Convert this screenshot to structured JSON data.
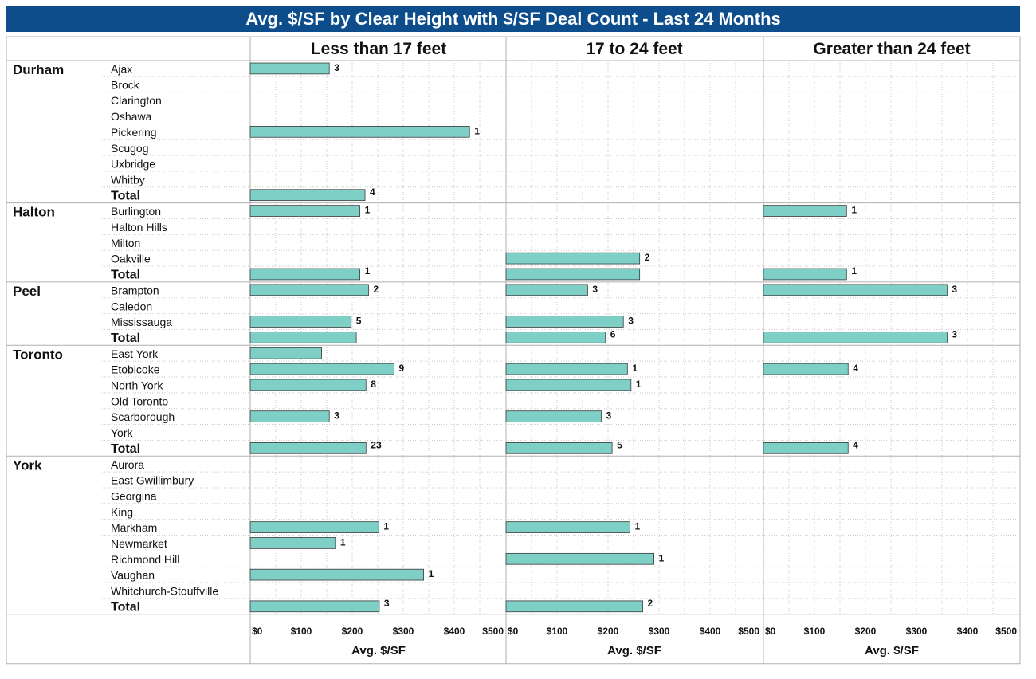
{
  "colors": {
    "title_bg": "#0d4d8c",
    "bar_fill": "#7ecfc6",
    "bar_stroke": "#3a3a3a",
    "grid": "#c8c8c8",
    "border": "#b0b0b0"
  },
  "chart_data": {
    "type": "bar",
    "title": "Avg. $/SF by Clear Height with $/SF Deal Count - Last 24 Months",
    "columns": [
      "Less than 17 feet",
      "17 to 24 feet",
      "Greater than 24 feet"
    ],
    "xlabel": "Avg. $/SF",
    "xlim": [
      0,
      500
    ],
    "x_ticks": [
      "$0",
      "$100",
      "$200",
      "$300",
      "$400",
      "$500"
    ],
    "grid": true,
    "groups": [
      {
        "region": "Durham",
        "rows": [
          {
            "label": "Ajax",
            "values": [
              155,
              null,
              null
            ],
            "counts": [
              "3",
              "",
              ""
            ]
          },
          {
            "label": "Brock",
            "values": [
              null,
              null,
              null
            ],
            "counts": [
              "",
              "",
              ""
            ]
          },
          {
            "label": "Clarington",
            "values": [
              null,
              null,
              null
            ],
            "counts": [
              "",
              "",
              ""
            ]
          },
          {
            "label": "Oshawa",
            "values": [
              null,
              null,
              null
            ],
            "counts": [
              "",
              "",
              ""
            ]
          },
          {
            "label": "Pickering",
            "values": [
              430,
              null,
              null
            ],
            "counts": [
              "1",
              "",
              ""
            ]
          },
          {
            "label": "Scugog",
            "values": [
              null,
              null,
              null
            ],
            "counts": [
              "",
              "",
              ""
            ]
          },
          {
            "label": "Uxbridge",
            "values": [
              null,
              null,
              null
            ],
            "counts": [
              "",
              "",
              ""
            ]
          },
          {
            "label": "Whitby",
            "values": [
              null,
              null,
              null
            ],
            "counts": [
              "",
              "",
              ""
            ]
          },
          {
            "label": "Total",
            "total": true,
            "values": [
              225,
              null,
              null
            ],
            "counts": [
              "4",
              "",
              ""
            ]
          }
        ]
      },
      {
        "region": "Halton",
        "rows": [
          {
            "label": "Burlington",
            "values": [
              215,
              null,
              163
            ],
            "counts": [
              "1",
              "",
              "1"
            ]
          },
          {
            "label": "Halton Hills",
            "values": [
              null,
              null,
              null
            ],
            "counts": [
              "",
              "",
              ""
            ]
          },
          {
            "label": "Milton",
            "values": [
              null,
              null,
              null
            ],
            "counts": [
              "",
              "",
              ""
            ]
          },
          {
            "label": "Oakville",
            "values": [
              null,
              262,
              null
            ],
            "counts": [
              "",
              "2",
              ""
            ]
          },
          {
            "label": "Total",
            "total": true,
            "values": [
              215,
              262,
              163
            ],
            "counts": [
              "1",
              "",
              "1"
            ]
          }
        ]
      },
      {
        "region": "Peel",
        "rows": [
          {
            "label": "Brampton",
            "values": [
              232,
              160,
              360
            ],
            "counts": [
              "2",
              "3",
              "3"
            ]
          },
          {
            "label": "Caledon",
            "values": [
              null,
              null,
              null
            ],
            "counts": [
              "",
              "",
              ""
            ]
          },
          {
            "label": "Mississauga",
            "values": [
              198,
              230,
              null
            ],
            "counts": [
              "5",
              "3",
              ""
            ]
          },
          {
            "label": "Total",
            "total": true,
            "values": [
              208,
              195,
              360
            ],
            "counts": [
              "",
              "6",
              "3"
            ]
          }
        ]
      },
      {
        "region": "Toronto",
        "rows": [
          {
            "label": "East York",
            "values": [
              140,
              null,
              null
            ],
            "counts": [
              "",
              "",
              ""
            ]
          },
          {
            "label": "Etobicoke",
            "values": [
              282,
              238,
              166
            ],
            "counts": [
              "9",
              "1",
              "4"
            ]
          },
          {
            "label": "North York",
            "values": [
              227,
              245,
              null
            ],
            "counts": [
              "8",
              "1",
              ""
            ]
          },
          {
            "label": "Old Toronto",
            "values": [
              null,
              null,
              null
            ],
            "counts": [
              "",
              "",
              ""
            ]
          },
          {
            "label": "Scarborough",
            "values": [
              155,
              187,
              null
            ],
            "counts": [
              "3",
              "3",
              ""
            ]
          },
          {
            "label": "York",
            "values": [
              null,
              null,
              null
            ],
            "counts": [
              "",
              "",
              ""
            ]
          },
          {
            "label": "Total",
            "total": true,
            "values": [
              227,
              208,
              166
            ],
            "counts": [
              "23",
              "5",
              "4"
            ]
          }
        ]
      },
      {
        "region": "York",
        "rows": [
          {
            "label": "Aurora",
            "values": [
              null,
              null,
              null
            ],
            "counts": [
              "",
              "",
              ""
            ]
          },
          {
            "label": "East Gwillimbury",
            "values": [
              null,
              null,
              null
            ],
            "counts": [
              "",
              "",
              ""
            ]
          },
          {
            "label": "Georgina",
            "values": [
              null,
              null,
              null
            ],
            "counts": [
              "",
              "",
              ""
            ]
          },
          {
            "label": "King",
            "values": [
              null,
              null,
              null
            ],
            "counts": [
              "",
              "",
              ""
            ]
          },
          {
            "label": "Markham",
            "values": [
              252,
              243,
              null
            ],
            "counts": [
              "1",
              "1",
              ""
            ]
          },
          {
            "label": "Newmarket",
            "values": [
              167,
              null,
              null
            ],
            "counts": [
              "1",
              "",
              ""
            ]
          },
          {
            "label": "Richmond Hill",
            "values": [
              null,
              290,
              null
            ],
            "counts": [
              "",
              "1",
              ""
            ]
          },
          {
            "label": "Vaughan",
            "values": [
              340,
              null,
              null
            ],
            "counts": [
              "1",
              "",
              ""
            ]
          },
          {
            "label": "Whitchurch-Stouffville",
            "values": [
              null,
              null,
              null
            ],
            "counts": [
              "",
              "",
              ""
            ]
          },
          {
            "label": "Total",
            "total": true,
            "values": [
              253,
              268,
              null
            ],
            "counts": [
              "3",
              "2",
              ""
            ]
          }
        ]
      }
    ]
  }
}
